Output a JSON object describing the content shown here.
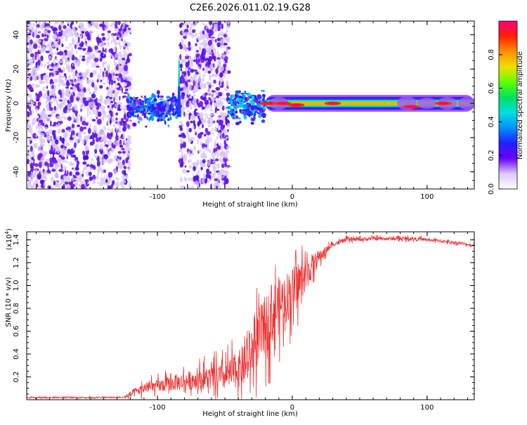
{
  "figure_title": "C2E6.2026.011.02.19.G28",
  "chart_data": [
    {
      "type": "heatmap",
      "title": "C2E6.2026.011.02.19.G28",
      "xlabel": "Height of straight line (km)",
      "ylabel": "Frequency (Hz)",
      "xlim": [
        -197,
        135
      ],
      "ylim": [
        -50,
        48
      ],
      "x_ticks": [
        -100,
        0,
        100
      ],
      "y_ticks": [
        -40,
        -20,
        0,
        20,
        40
      ],
      "x_tick_labels": [
        "-100",
        "0",
        "100"
      ],
      "y_tick_labels": [
        "-40",
        "-20",
        "0",
        "20",
        "40"
      ],
      "colorbar": {
        "label": "Normalized spectral amplitude",
        "range": [
          0.0,
          1.0
        ],
        "ticks": [
          0.0,
          0.2,
          0.4,
          0.6,
          0.8
        ],
        "tick_labels": [
          "0.0",
          "0.2",
          "0.4",
          "0.6",
          "0.8"
        ],
        "colormap": [
          "#ffffff",
          "#dcc8f5",
          "#6a00ff",
          "#2020ff",
          "#0090ff",
          "#00e0e0",
          "#00e060",
          "#60ff00",
          "#f0e000",
          "#ff9000",
          "#ff2000",
          "#ff0080"
        ]
      },
      "regions": [
        {
          "name": "noise",
          "x": [
            -197,
            -120
          ],
          "y": [
            -50,
            48
          ],
          "amplitude": 0.1
        },
        {
          "name": "noise",
          "x": [
            -83,
            -47
          ],
          "y": [
            -50,
            48
          ],
          "amplitude": 0.1
        },
        {
          "name": "onset",
          "x": [
            -122,
            -84
          ],
          "y": [
            -10,
            6
          ],
          "amplitude": 0.3
        },
        {
          "name": "onset",
          "x": [
            -48,
            -20
          ],
          "y": [
            -10,
            8
          ],
          "amplitude": 0.35
        },
        {
          "name": "carrier",
          "x": [
            -20,
            135
          ],
          "y": [
            -4,
            4
          ],
          "amplitude": 0.9
        }
      ],
      "peaks": [
        {
          "x": -18,
          "y": 0,
          "amplitude": 1.0
        },
        {
          "x": -7,
          "y": 0,
          "amplitude": 1.0
        },
        {
          "x": 3,
          "y": -1,
          "amplitude": 1.0
        },
        {
          "x": 30,
          "y": 0,
          "amplitude": 1.0
        },
        {
          "x": 88,
          "y": -2,
          "amplitude": 1.0
        },
        {
          "x": 112,
          "y": 0,
          "amplitude": 1.0
        }
      ]
    },
    {
      "type": "line",
      "title": "",
      "xlabel": "Height of straight line (km)",
      "ylabel": "SNR (10 * v/v)",
      "y_multiplier": "(x10",
      "y_multiplier_exp": "4",
      "y_multiplier_close": ")",
      "xlim": [
        -197,
        135
      ],
      "ylim": [
        0.0,
        1.47
      ],
      "x_ticks": [
        -100,
        0,
        100
      ],
      "y_ticks": [
        0.2,
        0.4,
        0.6,
        0.8,
        1.0,
        1.2,
        1.4
      ],
      "x_tick_labels": [
        "-100",
        "0",
        "100"
      ],
      "y_tick_labels": [
        "0.2",
        "0.4",
        "0.6",
        "0.8",
        "1.0",
        "1.2",
        "1.4"
      ],
      "series": [
        {
          "name": "SNR",
          "color": "#ee3333",
          "anchors": [
            [
              -197,
              0.02
            ],
            [
              -125,
              0.02
            ],
            [
              -110,
              0.1
            ],
            [
              -90,
              0.14
            ],
            [
              -70,
              0.18
            ],
            [
              -50,
              0.2
            ],
            [
              -35,
              0.3
            ],
            [
              -25,
              0.55
            ],
            [
              -15,
              0.75
            ],
            [
              -8,
              0.85
            ],
            [
              0,
              0.95
            ],
            [
              10,
              1.1
            ],
            [
              20,
              1.25
            ],
            [
              30,
              1.36
            ],
            [
              40,
              1.4
            ],
            [
              60,
              1.41
            ],
            [
              90,
              1.41
            ],
            [
              110,
              1.39
            ],
            [
              125,
              1.37
            ],
            [
              135,
              1.35
            ]
          ],
          "spread_anchors": [
            [
              -197,
              0.01
            ],
            [
              -125,
              0.01
            ],
            [
              -118,
              0.06
            ],
            [
              -100,
              0.09
            ],
            [
              -70,
              0.15
            ],
            [
              -50,
              0.2
            ],
            [
              -35,
              0.3
            ],
            [
              -25,
              0.42
            ],
            [
              -15,
              0.45
            ],
            [
              0,
              0.35
            ],
            [
              10,
              0.25
            ],
            [
              20,
              0.1
            ],
            [
              30,
              0.03
            ],
            [
              135,
              0.02
            ]
          ]
        }
      ]
    }
  ]
}
